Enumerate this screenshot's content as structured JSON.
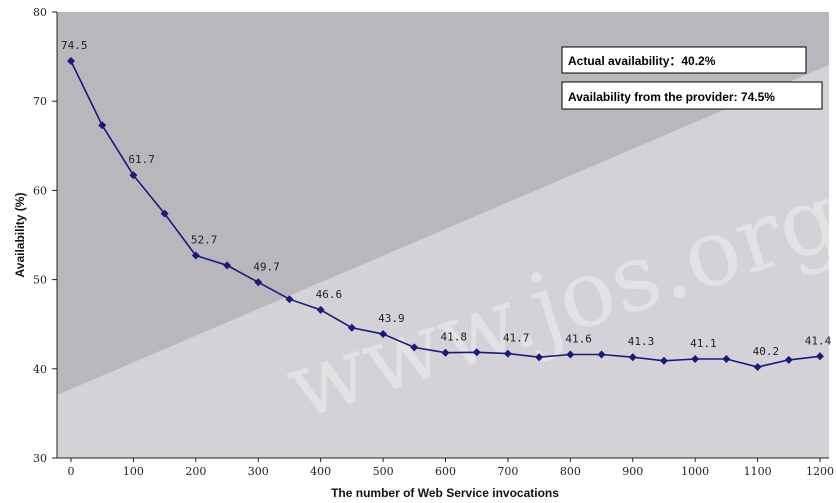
{
  "chart_data": {
    "type": "line",
    "xlabel": "The number of Web Service invocations",
    "ylabel": "Availability (%)",
    "xlim": [
      0,
      1200
    ],
    "ylim": [
      30,
      80
    ],
    "x_ticks": [
      "0",
      "100",
      "200",
      "300",
      "400",
      "500",
      "600",
      "700",
      "800",
      "900",
      "1000",
      "1100",
      "1200"
    ],
    "y_ticks": [
      "30",
      "40",
      "50",
      "60",
      "70",
      "80"
    ],
    "grid": false,
    "series": [
      {
        "x": [
          0,
          50,
          100,
          150,
          200,
          250,
          300,
          350,
          400,
          450,
          500,
          550,
          600,
          650,
          700,
          750,
          800,
          850,
          900,
          950,
          1000,
          1050,
          1100,
          1150,
          1200
        ],
        "values": [
          74.5,
          67.3,
          61.7,
          57.4,
          52.7,
          51.6,
          49.7,
          47.8,
          46.6,
          44.6,
          43.9,
          42.4,
          41.8,
          41.85,
          41.7,
          41.3,
          41.6,
          41.6,
          41.3,
          40.9,
          41.1,
          41.1,
          40.2,
          41.0,
          41.4
        ],
        "color": "#1a1a7e"
      }
    ],
    "data_labels": [
      {
        "x": 0,
        "y": 74.5,
        "text": "74.5"
      },
      {
        "x": 100,
        "y": 61.7,
        "text": "61.7"
      },
      {
        "x": 200,
        "y": 52.7,
        "text": "52.7"
      },
      {
        "x": 300,
        "y": 49.7,
        "text": "49.7"
      },
      {
        "x": 400,
        "y": 46.6,
        "text": "46.6"
      },
      {
        "x": 500,
        "y": 43.9,
        "text": "43.9"
      },
      {
        "x": 600,
        "y": 41.8,
        "text": "41.8"
      },
      {
        "x": 700,
        "y": 41.7,
        "text": "41.7"
      },
      {
        "x": 800,
        "y": 41.6,
        "text": "41.6"
      },
      {
        "x": 900,
        "y": 41.3,
        "text": "41.3"
      },
      {
        "x": 1000,
        "y": 41.1,
        "text": "41.1"
      },
      {
        "x": 1100,
        "y": 40.2,
        "text": "40.2"
      },
      {
        "x": 1200,
        "y": 41.4,
        "text": "41.4"
      }
    ],
    "legend": [
      "Actual availability：40.2%",
      "Availability from the provider: 74.5%"
    ],
    "legend_position": "top-right",
    "watermark": "www.jos.org.cn"
  },
  "colors": {
    "background_dark": "#b9b7bb",
    "background_light": "#d4d2d6",
    "line": "#1a1a7e"
  }
}
